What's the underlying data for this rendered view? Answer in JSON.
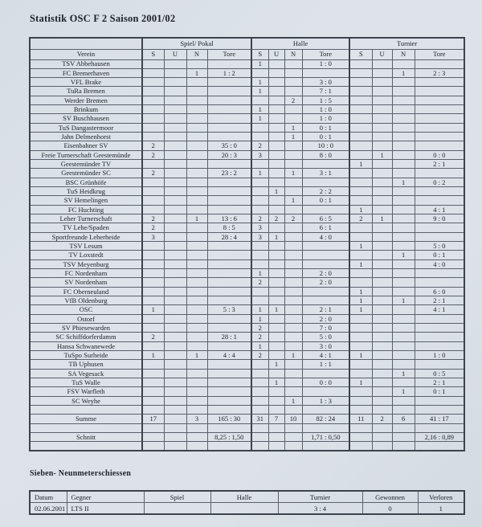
{
  "title": "Statistik OSC F 2 Saison 2001/02",
  "penalty_heading": "Sieben- Neunmeterschiessen",
  "colors": {
    "paper": "#dce2e8",
    "ink": "#20242b",
    "line": "#3c434d"
  },
  "main_table": {
    "group_headers": [
      {
        "label": "",
        "span": 1
      },
      {
        "label": "Spiel/ Pokal",
        "span": 4
      },
      {
        "label": "Halle",
        "span": 4
      },
      {
        "label": "Turnier",
        "span": 4
      }
    ],
    "column_headers": [
      "Verein",
      "S",
      "U",
      "N",
      "Tore",
      "S",
      "U",
      "N",
      "Tore",
      "S",
      "U",
      "N",
      "Tore"
    ],
    "rows": [
      {
        "type": "club",
        "label": "TSV Abbehausen",
        "cells": [
          "",
          "",
          "",
          "",
          "1",
          "",
          "",
          "1 : 0",
          "",
          "",
          "",
          ""
        ]
      },
      {
        "type": "club",
        "label": "FC Bremerhaven",
        "cells": [
          "",
          "",
          "1",
          "1 : 2",
          "",
          "",
          "",
          "",
          "",
          "",
          "1",
          "2 : 3"
        ]
      },
      {
        "type": "club",
        "label": "VFL Brake",
        "cells": [
          "",
          "",
          "",
          "",
          "1",
          "",
          "",
          "3 : 0",
          "",
          "",
          "",
          ""
        ]
      },
      {
        "type": "club",
        "label": "TuRa Bremen",
        "cells": [
          "",
          "",
          "",
          "",
          "1",
          "",
          "",
          "7 : 1",
          "",
          "",
          "",
          ""
        ]
      },
      {
        "type": "club",
        "label": "Werder Bremen",
        "cells": [
          "",
          "",
          "",
          "",
          "",
          "",
          "2",
          "1 : 5",
          "",
          "",
          "",
          ""
        ]
      },
      {
        "type": "club",
        "label": "Brinkum",
        "cells": [
          "",
          "",
          "",
          "",
          "1",
          "",
          "",
          "1 : 0",
          "",
          "",
          "",
          ""
        ]
      },
      {
        "type": "club",
        "label": "SV Buschhausen",
        "cells": [
          "",
          "",
          "",
          "",
          "1",
          "",
          "",
          "1 : 0",
          "",
          "",
          "",
          ""
        ]
      },
      {
        "type": "club",
        "label": "TuS Dangastermoor",
        "cells": [
          "",
          "",
          "",
          "",
          "",
          "",
          "1",
          "0 : 1",
          "",
          "",
          "",
          ""
        ]
      },
      {
        "type": "club",
        "label": "Jahn Delmenhorst",
        "cells": [
          "",
          "",
          "",
          "",
          "",
          "",
          "1",
          "0 : 1",
          "",
          "",
          "",
          ""
        ]
      },
      {
        "type": "club",
        "label": "Eisenbahner SV",
        "cells": [
          "2",
          "",
          "",
          "35 : 0",
          "2",
          "",
          "",
          "10 : 0",
          "",
          "",
          "",
          ""
        ]
      },
      {
        "type": "club",
        "label": "Freie Turnerschaft Geestemünde",
        "cells": [
          "2",
          "",
          "",
          "20 : 3",
          "3",
          "",
          "",
          "8 : 0",
          "",
          "1",
          "",
          "0 : 0"
        ]
      },
      {
        "type": "club",
        "label": "Geestemünder TV",
        "cells": [
          "",
          "",
          "",
          "",
          "",
          "",
          "",
          "",
          "1",
          "",
          "",
          "2 : 1"
        ]
      },
      {
        "type": "club",
        "label": "Geestemünder SC",
        "cells": [
          "2",
          "",
          "",
          "23 : 2",
          "1",
          "",
          "1",
          "3 : 1",
          "",
          "",
          "",
          ""
        ]
      },
      {
        "type": "club",
        "label": "BSC Grünhöfe",
        "cells": [
          "",
          "",
          "",
          "",
          "",
          "",
          "",
          "",
          "",
          "",
          "1",
          "0 : 2"
        ]
      },
      {
        "type": "club",
        "label": "TuS Heidkrug",
        "cells": [
          "",
          "",
          "",
          "",
          "",
          "1",
          "",
          "2 : 2",
          "",
          "",
          "",
          ""
        ]
      },
      {
        "type": "club",
        "label": "SV Hemelingen",
        "cells": [
          "",
          "",
          "",
          "",
          "",
          "",
          "1",
          "0 : 1",
          "",
          "",
          "",
          ""
        ]
      },
      {
        "type": "club",
        "label": "FC Huchting",
        "cells": [
          "",
          "",
          "",
          "",
          "",
          "",
          "",
          "",
          "1",
          "",
          "",
          "4 : 1"
        ]
      },
      {
        "type": "club",
        "label": "Leher Turnerschaft",
        "cells": [
          "2",
          "",
          "1",
          "13 : 6",
          "2",
          "2",
          "2",
          "6 : 5",
          "2",
          "1",
          "",
          "9 : 0"
        ]
      },
      {
        "type": "club",
        "label": "TV Lehe/Spaden",
        "cells": [
          "2",
          "",
          "",
          "8 : 5",
          "3",
          "",
          "",
          "6 : 1",
          "",
          "",
          "",
          ""
        ]
      },
      {
        "type": "club",
        "label": "Sportfreunde Leherheide",
        "cells": [
          "3",
          "",
          "",
          "28 : 4",
          "3",
          "1",
          "",
          "4 : 0",
          "",
          "",
          "",
          ""
        ]
      },
      {
        "type": "club",
        "label": "TSV Lesum",
        "cells": [
          "",
          "",
          "",
          "",
          "",
          "",
          "",
          "",
          "1",
          "",
          "",
          "5 : 0"
        ]
      },
      {
        "type": "club",
        "label": "TV Loxstedt",
        "cells": [
          "",
          "",
          "",
          "",
          "",
          "",
          "",
          "",
          "",
          "",
          "1",
          "0 : 1"
        ]
      },
      {
        "type": "club",
        "label": "TSV Meyenburg",
        "cells": [
          "",
          "",
          "",
          "",
          "",
          "",
          "",
          "",
          "1",
          "",
          "",
          "4 : 0"
        ]
      },
      {
        "type": "club",
        "label": "FC Nordenham",
        "cells": [
          "",
          "",
          "",
          "",
          "1",
          "",
          "",
          "2 : 0",
          "",
          "",
          "",
          ""
        ]
      },
      {
        "type": "club",
        "label": "SV Nordenham",
        "cells": [
          "",
          "",
          "",
          "",
          "2",
          "",
          "",
          "2 : 0",
          "",
          "",
          "",
          ""
        ]
      },
      {
        "type": "club",
        "label": "FC Oberneuland",
        "cells": [
          "",
          "",
          "",
          "",
          "",
          "",
          "",
          "",
          "1",
          "",
          "",
          "6 : 0"
        ]
      },
      {
        "type": "club",
        "label": "VfB Oldenburg",
        "cells": [
          "",
          "",
          "",
          "",
          "",
          "",
          "",
          "",
          "1",
          "",
          "1",
          "2 : 1"
        ]
      },
      {
        "type": "club",
        "label": "OSC",
        "cells": [
          "1",
          "",
          "",
          "5 : 3",
          "1",
          "1",
          "",
          "2 : 1",
          "1",
          "",
          "",
          "4 : 1"
        ]
      },
      {
        "type": "club",
        "label": "Ostorf",
        "cells": [
          "",
          "",
          "",
          "",
          "1",
          "",
          "",
          "2 : 0",
          "",
          "",
          "",
          ""
        ]
      },
      {
        "type": "club",
        "label": "SV Phiesewarden",
        "cells": [
          "",
          "",
          "",
          "",
          "2",
          "",
          "",
          "7 : 0",
          "",
          "",
          "",
          ""
        ]
      },
      {
        "type": "club",
        "label": "SC Schiffdorferdamm",
        "cells": [
          "2",
          "",
          "",
          "28 : 1",
          "2",
          "",
          "",
          "5 : 0",
          "",
          "",
          "",
          ""
        ]
      },
      {
        "type": "club",
        "label": "Hansa Schwanewede",
        "cells": [
          "",
          "",
          "",
          "",
          "1",
          "",
          "",
          "3 : 0",
          "",
          "",
          "",
          ""
        ]
      },
      {
        "type": "club",
        "label": "TuSpo Surheide",
        "cells": [
          "1",
          "",
          "1",
          "4 : 4",
          "2",
          "",
          "1",
          "4 : 1",
          "1",
          "",
          "",
          "1 : 0"
        ]
      },
      {
        "type": "club",
        "label": "TB Uphusen",
        "cells": [
          "",
          "",
          "",
          "",
          "",
          "1",
          "",
          "1 : 1",
          "",
          "",
          "",
          ""
        ]
      },
      {
        "type": "club",
        "label": "SA Vegesack",
        "cells": [
          "",
          "",
          "",
          "",
          "",
          "",
          "",
          "",
          "",
          "",
          "1",
          "0 : 5"
        ]
      },
      {
        "type": "club",
        "label": "TuS Walle",
        "cells": [
          "",
          "",
          "",
          "",
          "",
          "1",
          "",
          "0 : 0",
          "1",
          "",
          "",
          "2 : 1"
        ]
      },
      {
        "type": "club",
        "label": "FSV Warfleth",
        "cells": [
          "",
          "",
          "",
          "",
          "",
          "",
          "",
          "",
          "",
          "",
          "1",
          "0 : 1"
        ]
      },
      {
        "type": "club",
        "label": "SC Weyhe",
        "cells": [
          "",
          "",
          "",
          "",
          "",
          "",
          "1",
          "1 : 3",
          "",
          "",
          "",
          ""
        ]
      },
      {
        "type": "spacer",
        "label": "",
        "cells": [
          "",
          "",
          "",
          "",
          "",
          "",
          "",
          "",
          "",
          "",
          "",
          ""
        ]
      },
      {
        "type": "summe",
        "label": "Summe",
        "cells": [
          "17",
          "",
          "3",
          "165 : 30",
          "31",
          "7",
          "10",
          "82 : 24",
          "11",
          "2",
          "6",
          "41 : 17"
        ]
      },
      {
        "type": "spacer",
        "label": "",
        "cells": [
          "",
          "",
          "",
          "",
          "",
          "",
          "",
          "",
          "",
          "",
          "",
          ""
        ]
      },
      {
        "type": "schnitt",
        "label": "Schnitt",
        "cells": [
          "",
          "",
          "",
          "8,25 : 1,50",
          "",
          "",
          "",
          "1,71 : 0,50",
          "",
          "",
          "",
          "2,16 : 0,89"
        ]
      },
      {
        "type": "spacer",
        "label": "",
        "cells": [
          "",
          "",
          "",
          "",
          "",
          "",
          "",
          "",
          "",
          "",
          "",
          ""
        ]
      }
    ]
  },
  "penalty_table": {
    "headers": [
      "Datum",
      "Gegner",
      "Spiel",
      "Halle",
      "Turnier",
      "Gewonnen",
      "Verloren"
    ],
    "rows": [
      [
        "02.06.2001",
        "LTS II",
        "",
        "",
        "3 : 4",
        "0",
        "1"
      ]
    ]
  }
}
